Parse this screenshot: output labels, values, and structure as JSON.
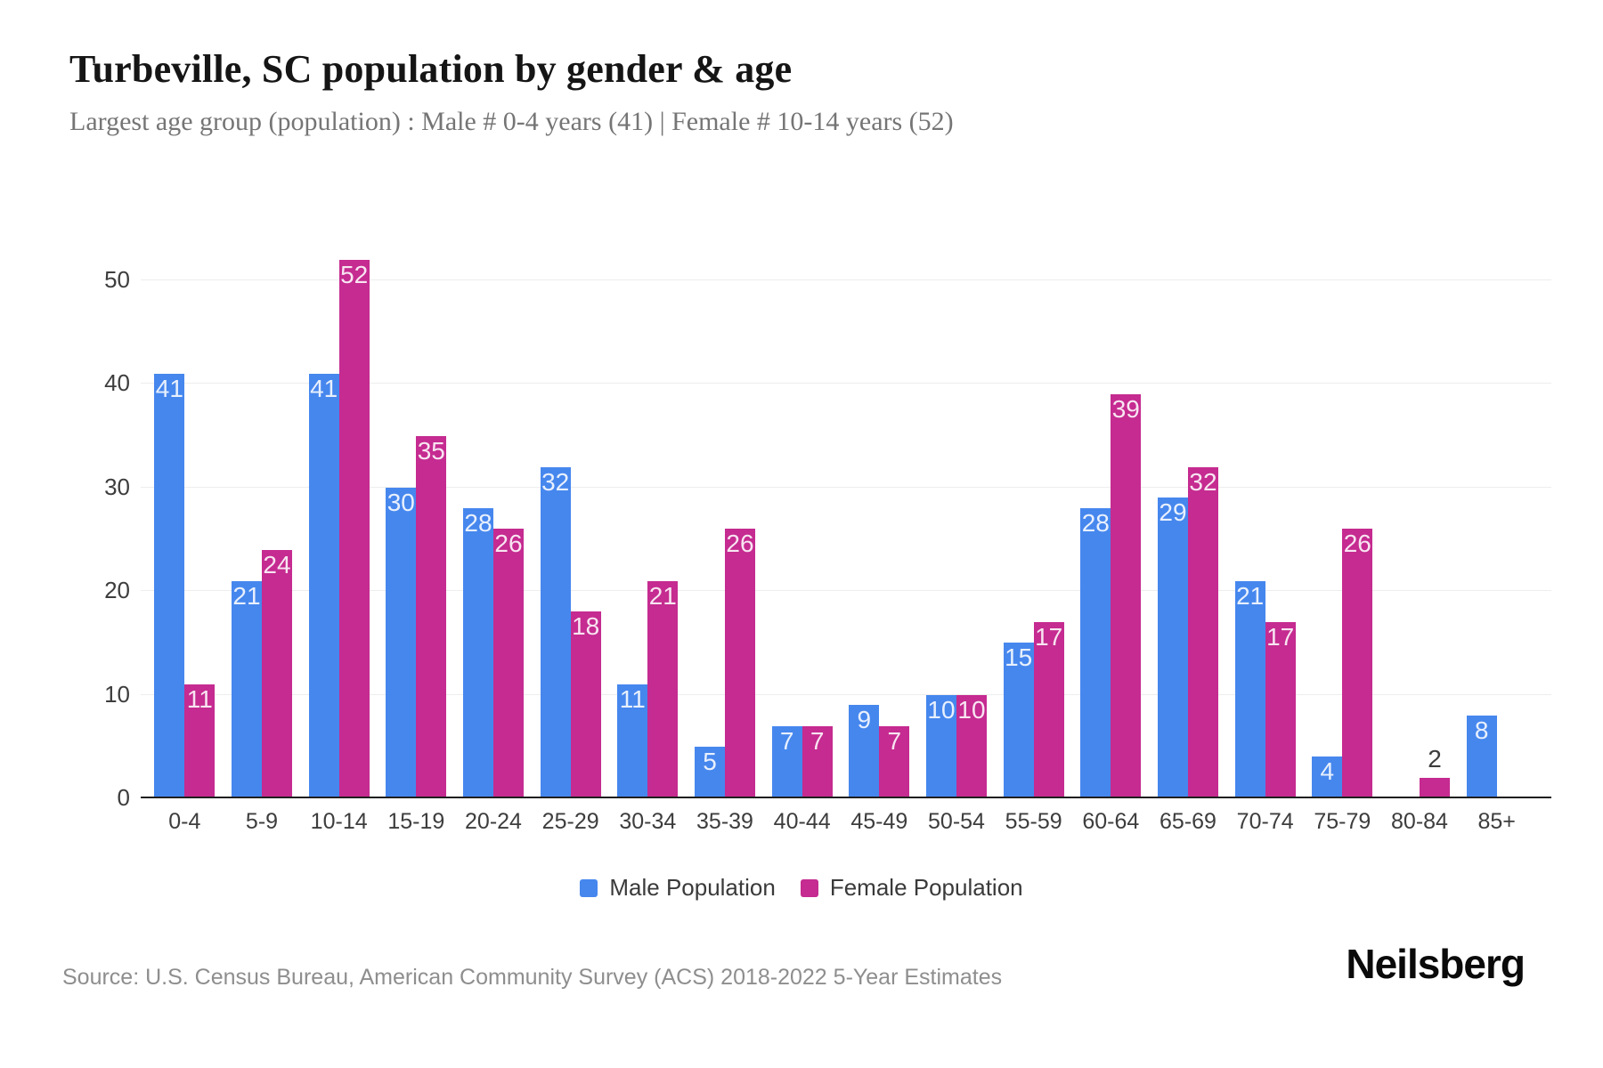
{
  "chart_data": {
    "type": "bar",
    "title": "Turbeville, SC population by gender & age",
    "subtitle": "Largest age group (population) : Male # 0-4 years (41) | Female # 10-14 years (52)",
    "categories": [
      "0-4",
      "5-9",
      "10-14",
      "15-19",
      "20-24",
      "25-29",
      "30-34",
      "35-39",
      "40-44",
      "45-49",
      "50-54",
      "55-59",
      "60-64",
      "65-69",
      "70-74",
      "75-79",
      "80-84",
      "85+"
    ],
    "series": [
      {
        "name": "Male Population",
        "color": "#4687ee",
        "values": [
          41,
          21,
          41,
          30,
          28,
          32,
          11,
          5,
          7,
          9,
          10,
          15,
          28,
          29,
          21,
          4,
          0,
          8
        ]
      },
      {
        "name": "Female Population",
        "color": "#c52b90",
        "values": [
          11,
          24,
          52,
          35,
          26,
          18,
          21,
          26,
          7,
          7,
          10,
          17,
          39,
          32,
          17,
          26,
          2,
          0
        ]
      }
    ],
    "xlabel": "",
    "ylabel": "",
    "ylim": [
      0,
      55
    ],
    "yticks": [
      0,
      10,
      20,
      30,
      40,
      50
    ],
    "grid": "horizontal",
    "legend_position": "bottom",
    "bar_label_color_inside": "#ffffff",
    "bar_label_color_outside": "#3d3d3d"
  },
  "footer": {
    "source": "Source: U.S. Census Bureau, American Community Survey (ACS) 2018-2022 5-Year Estimates",
    "logo": "Neilsberg"
  }
}
